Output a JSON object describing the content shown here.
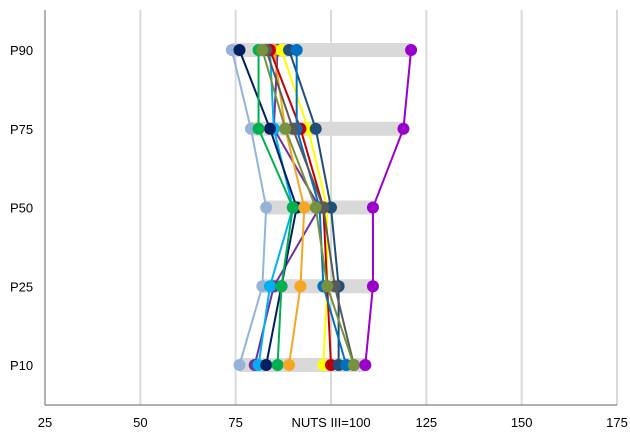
{
  "chart_data": {
    "type": "scatter",
    "xlabel": "NUTS III=100",
    "ylabel": "",
    "xlim": [
      25,
      175
    ],
    "x_ticks": [
      "25",
      "50",
      "75",
      "NUTS III=100",
      "125",
      "150",
      "175"
    ],
    "x_tick_values": [
      25,
      50,
      75,
      100,
      125,
      150,
      175
    ],
    "categories": [
      "P10",
      "P25",
      "P50",
      "P75",
      "P90"
    ],
    "grid": true,
    "range_bar_color": "#d9d9d9",
    "series": [
      {
        "color": "#95b3d7",
        "values": [
          76,
          82,
          83,
          79,
          74
        ]
      },
      {
        "color": "#7030a0",
        "values": [
          80,
          85,
          97,
          85,
          86
        ]
      },
      {
        "color": "#00b0f0",
        "values": [
          81,
          84,
          90,
          85,
          84
        ]
      },
      {
        "color": "#002060",
        "values": [
          83,
          87,
          91,
          84,
          76
        ]
      },
      {
        "color": "#00b050",
        "values": [
          86,
          87,
          90,
          81,
          81
        ]
      },
      {
        "color": "#f5a623",
        "values": [
          89,
          92,
          93,
          88,
          85
        ]
      },
      {
        "color": "#ffff00",
        "values": [
          98,
          99,
          99,
          94,
          87
        ]
      },
      {
        "color": "#c00000",
        "values": [
          100,
          99,
          98,
          92,
          84
        ]
      },
      {
        "color": "#1f4e79",
        "values": [
          102,
          102,
          100,
          96,
          89
        ]
      },
      {
        "color": "#0070c0",
        "values": [
          104,
          98,
          97,
          91,
          91
        ]
      },
      {
        "color": "#595959",
        "values": [
          106,
          101,
          98,
          90,
          83
        ]
      },
      {
        "color": "#76923c",
        "values": [
          106,
          99,
          96,
          88,
          82
        ]
      },
      {
        "color": "#9900cc",
        "values": [
          109,
          111,
          111,
          119,
          121
        ]
      }
    ]
  }
}
